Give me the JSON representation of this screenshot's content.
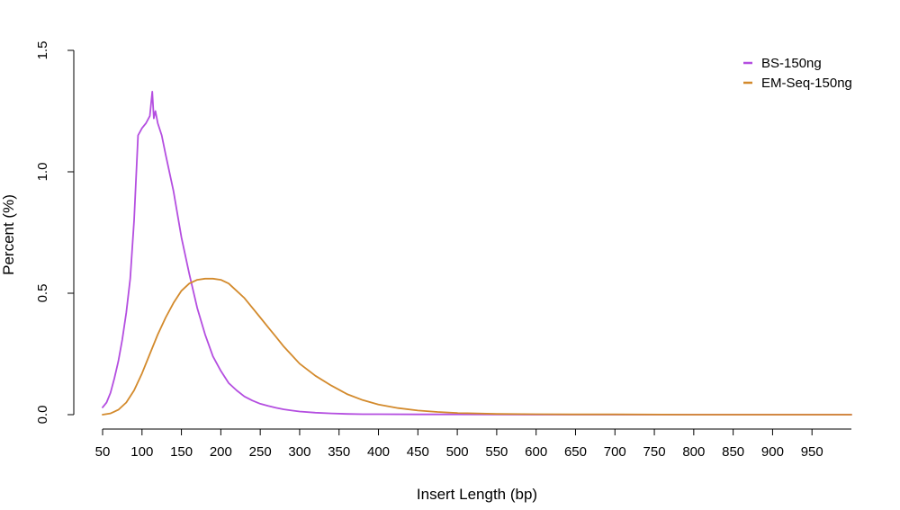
{
  "chart_data": {
    "type": "line",
    "title": "",
    "xlabel": "Insert Length (bp)",
    "ylabel": "Percent (%)",
    "xlim": [
      50,
      1000
    ],
    "ylim": [
      0,
      1.5
    ],
    "x_ticks": [
      50,
      100,
      150,
      200,
      250,
      300,
      350,
      400,
      450,
      500,
      550,
      600,
      650,
      700,
      750,
      800,
      850,
      900,
      950
    ],
    "x_tick_labels": [
      "50",
      "100",
      "150",
      "200",
      "250",
      "300",
      "350",
      "400",
      "450",
      "500",
      "550",
      "600",
      "650",
      "700",
      "750",
      "800",
      "850",
      "900",
      "950"
    ],
    "y_ticks": [
      0.0,
      0.5,
      1.0,
      1.5
    ],
    "y_tick_labels": [
      "0.0",
      "0.5",
      "1.0",
      "1.5"
    ],
    "legend_position": "top-right",
    "grid": false,
    "series": [
      {
        "name": "BS-150ng",
        "color": "#b44ee0",
        "x": [
          50,
          55,
          60,
          65,
          70,
          75,
          80,
          85,
          90,
          95,
          100,
          105,
          110,
          113,
          115,
          117,
          120,
          125,
          130,
          140,
          150,
          160,
          170,
          180,
          190,
          200,
          210,
          220,
          230,
          240,
          250,
          260,
          270,
          280,
          290,
          300,
          320,
          340,
          360,
          380,
          400,
          450,
          500,
          600,
          700,
          800,
          900,
          1000
        ],
        "values": [
          0.03,
          0.05,
          0.09,
          0.15,
          0.22,
          0.31,
          0.42,
          0.56,
          0.8,
          1.15,
          1.18,
          1.2,
          1.23,
          1.33,
          1.22,
          1.25,
          1.2,
          1.15,
          1.07,
          0.92,
          0.73,
          0.58,
          0.44,
          0.33,
          0.24,
          0.18,
          0.13,
          0.1,
          0.075,
          0.058,
          0.045,
          0.036,
          0.028,
          0.022,
          0.017,
          0.013,
          0.008,
          0.005,
          0.003,
          0.002,
          0.002,
          0.001,
          0.001,
          0.0,
          0.0,
          0.0,
          0.0,
          0.0
        ]
      },
      {
        "name": "EM-Seq-150ng",
        "color": "#d38a2c",
        "x": [
          50,
          60,
          70,
          80,
          90,
          100,
          110,
          120,
          130,
          140,
          150,
          160,
          170,
          180,
          190,
          200,
          210,
          220,
          230,
          240,
          250,
          260,
          270,
          280,
          290,
          300,
          320,
          340,
          360,
          380,
          400,
          425,
          450,
          475,
          500,
          525,
          550,
          600,
          650,
          700,
          800,
          900,
          1000
        ],
        "values": [
          0.0,
          0.005,
          0.02,
          0.05,
          0.1,
          0.17,
          0.25,
          0.33,
          0.4,
          0.46,
          0.51,
          0.54,
          0.555,
          0.56,
          0.56,
          0.555,
          0.54,
          0.51,
          0.48,
          0.44,
          0.4,
          0.36,
          0.32,
          0.28,
          0.245,
          0.21,
          0.16,
          0.12,
          0.085,
          0.06,
          0.042,
          0.027,
          0.017,
          0.011,
          0.007,
          0.005,
          0.003,
          0.002,
          0.001,
          0.001,
          0.0,
          0.0,
          0.0
        ]
      }
    ]
  }
}
